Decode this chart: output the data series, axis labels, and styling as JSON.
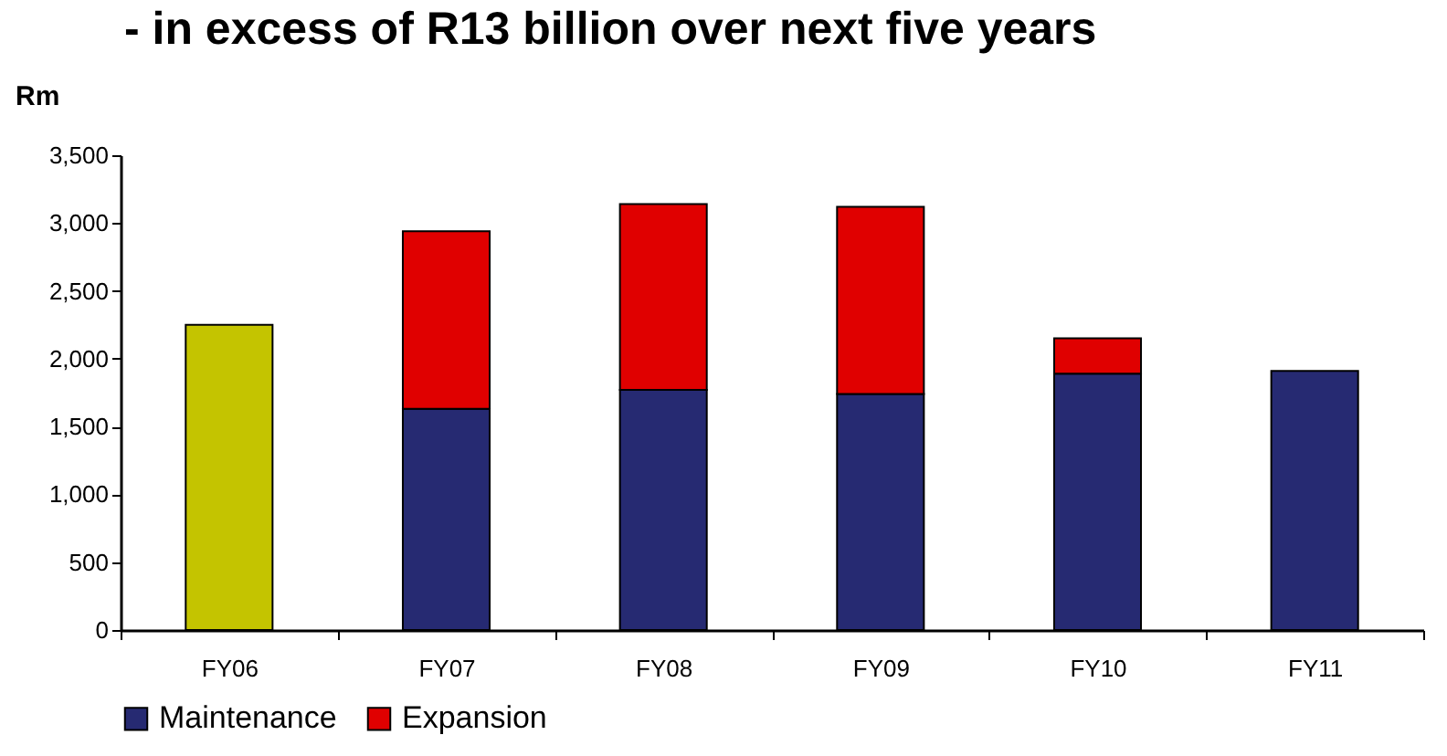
{
  "chart_data": {
    "type": "bar",
    "title": "-  in excess of R13 billion over next five years",
    "ylabel": "Rm",
    "categories": [
      "FY06",
      "FY07",
      "FY08",
      "FY09",
      "FY10",
      "FY11"
    ],
    "series": [
      {
        "color": "#c4c400",
        "values": [
          2250,
          null,
          null,
          null,
          null,
          null
        ]
      },
      {
        "name": "Maintenance",
        "color": "#262a72",
        "values": [
          null,
          1630,
          1770,
          1740,
          1890,
          1910
        ]
      },
      {
        "name": "Expansion",
        "color": "#e00000",
        "values": [
          null,
          1310,
          1370,
          1380,
          260,
          null
        ]
      }
    ],
    "stacked": true,
    "ylim": [
      0,
      3500
    ],
    "yticks": [
      0,
      {
        "value": 500,
        "label": "500"
      },
      {
        "value": 1000,
        "label": "1,000"
      },
      {
        "value": 1500,
        "label": "1,500"
      },
      {
        "value": 2000,
        "label": "2,000"
      },
      {
        "value": 2500,
        "label": "2,500"
      },
      {
        "value": 3000,
        "label": "3,000"
      },
      {
        "value": 3500,
        "label": "3,500"
      }
    ],
    "grid": false,
    "legend": "bottom"
  }
}
